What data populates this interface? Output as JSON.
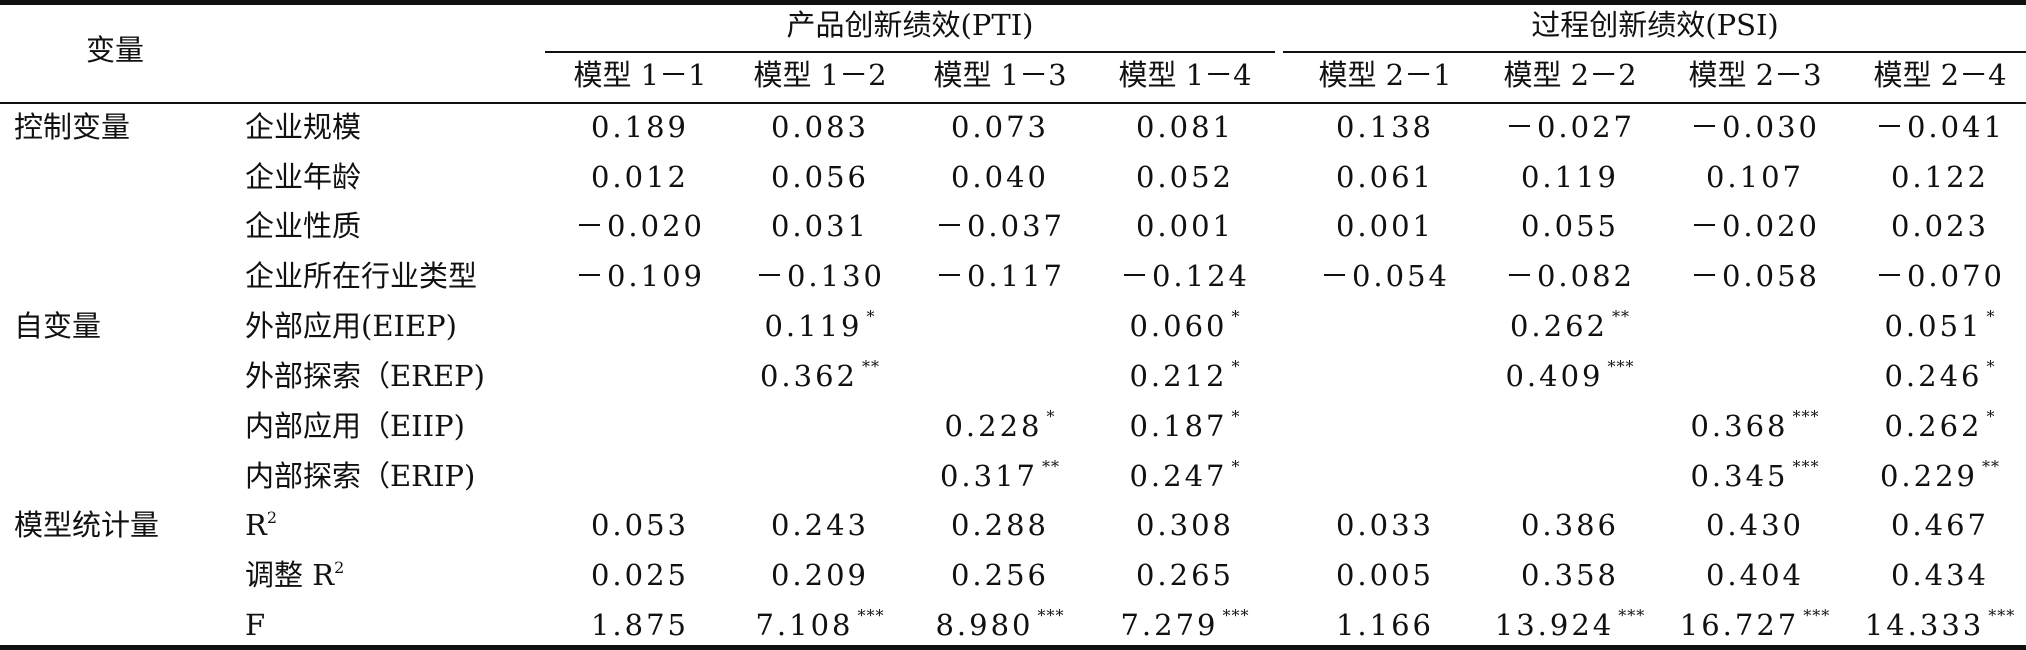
{
  "header": {
    "variable": "变量",
    "group1": "产品创新绩效(PTI)",
    "group2": "过程创新绩效(PSI)",
    "models": [
      "模型 1－1",
      "模型 1－2",
      "模型 1－3",
      "模型 1－4",
      "模型 2－1",
      "模型 2－2",
      "模型 2－3",
      "模型 2－4"
    ]
  },
  "sections": {
    "control": "控制变量",
    "independent": "自变量",
    "stats": "模型统计量"
  },
  "rows": [
    {
      "label": "企业规模",
      "cells": [
        [
          "0.189",
          ""
        ],
        [
          "0.083",
          ""
        ],
        [
          "0.073",
          ""
        ],
        [
          "0.081",
          ""
        ],
        [
          "0.138",
          ""
        ],
        [
          "－0.027",
          ""
        ],
        [
          "－0.030",
          ""
        ],
        [
          "－0.041",
          ""
        ]
      ]
    },
    {
      "label": "企业年龄",
      "cells": [
        [
          "0.012",
          ""
        ],
        [
          "0.056",
          ""
        ],
        [
          "0.040",
          ""
        ],
        [
          "0.052",
          ""
        ],
        [
          "0.061",
          ""
        ],
        [
          "0.119",
          ""
        ],
        [
          "0.107",
          ""
        ],
        [
          "0.122",
          ""
        ]
      ]
    },
    {
      "label": "企业性质",
      "cells": [
        [
          "－0.020",
          ""
        ],
        [
          "0.031",
          ""
        ],
        [
          "－0.037",
          ""
        ],
        [
          "0.001",
          ""
        ],
        [
          "0.001",
          ""
        ],
        [
          "0.055",
          ""
        ],
        [
          "－0.020",
          ""
        ],
        [
          "0.023",
          ""
        ]
      ]
    },
    {
      "label": "企业所在行业类型",
      "cells": [
        [
          "－0.109",
          ""
        ],
        [
          "－0.130",
          ""
        ],
        [
          "－0.117",
          ""
        ],
        [
          "－0.124",
          ""
        ],
        [
          "－0.054",
          ""
        ],
        [
          "－0.082",
          ""
        ],
        [
          "－0.058",
          ""
        ],
        [
          "－0.070",
          ""
        ]
      ]
    },
    {
      "label": "外部应用(EIEP)",
      "cells": [
        [
          "",
          ""
        ],
        [
          "0.119",
          "*"
        ],
        [
          "",
          ""
        ],
        [
          "0.060",
          "*"
        ],
        [
          "",
          ""
        ],
        [
          "0.262",
          "**"
        ],
        [
          "",
          ""
        ],
        [
          "0.051",
          "*"
        ]
      ]
    },
    {
      "label": "外部探索（EREP)",
      "cells": [
        [
          "",
          ""
        ],
        [
          "0.362",
          "**"
        ],
        [
          "",
          ""
        ],
        [
          "0.212",
          "*"
        ],
        [
          "",
          ""
        ],
        [
          "0.409",
          "***"
        ],
        [
          "",
          ""
        ],
        [
          "0.246",
          "*"
        ]
      ]
    },
    {
      "label": "内部应用（EIIP)",
      "cells": [
        [
          "",
          ""
        ],
        [
          "",
          ""
        ],
        [
          "0.228",
          "*"
        ],
        [
          "0.187",
          "*"
        ],
        [
          "",
          ""
        ],
        [
          "",
          ""
        ],
        [
          "0.368",
          "***"
        ],
        [
          "0.262",
          "*"
        ]
      ]
    },
    {
      "label": "内部探索（ERIP)",
      "cells": [
        [
          "",
          ""
        ],
        [
          "",
          ""
        ],
        [
          "0.317",
          "**"
        ],
        [
          "0.247",
          "*"
        ],
        [
          "",
          ""
        ],
        [
          "",
          ""
        ],
        [
          "0.345",
          "***"
        ],
        [
          "0.229",
          "**"
        ]
      ]
    },
    {
      "label": "R",
      "label_sup": "2",
      "cells": [
        [
          "0.053",
          ""
        ],
        [
          "0.243",
          ""
        ],
        [
          "0.288",
          ""
        ],
        [
          "0.308",
          ""
        ],
        [
          "0.033",
          ""
        ],
        [
          "0.386",
          ""
        ],
        [
          "0.430",
          ""
        ],
        [
          "0.467",
          ""
        ]
      ]
    },
    {
      "label": "调整 R",
      "label_sup": "2",
      "cells": [
        [
          "0.025",
          ""
        ],
        [
          "0.209",
          ""
        ],
        [
          "0.256",
          ""
        ],
        [
          "0.265",
          ""
        ],
        [
          "0.005",
          ""
        ],
        [
          "0.358",
          ""
        ],
        [
          "0.404",
          ""
        ],
        [
          "0.434",
          ""
        ]
      ]
    },
    {
      "label": "F",
      "cells": [
        [
          "1.875",
          ""
        ],
        [
          "7.108",
          "***"
        ],
        [
          "8.980",
          "***"
        ],
        [
          "7.279",
          "***"
        ],
        [
          "1.166",
          ""
        ],
        [
          "13.924",
          "***"
        ],
        [
          "16.727",
          "***"
        ],
        [
          "14.333",
          "***"
        ]
      ]
    }
  ]
}
